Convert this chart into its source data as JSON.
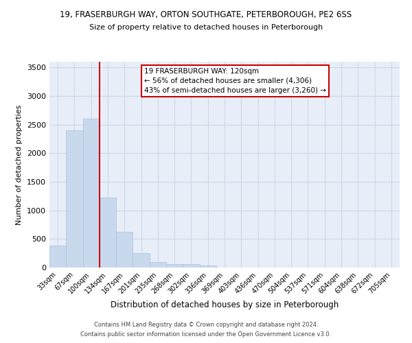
{
  "title_line1": "19, FRASERBURGH WAY, ORTON SOUTHGATE, PETERBOROUGH, PE2 6SS",
  "title_line2": "Size of property relative to detached houses in Peterborough",
  "xlabel": "Distribution of detached houses by size in Peterborough",
  "ylabel": "Number of detached properties",
  "footer_line1": "Contains HM Land Registry data © Crown copyright and database right 2024.",
  "footer_line2": "Contains public sector information licensed under the Open Government Licence v3.0.",
  "annotation_line1": "19 FRASERBURGH WAY: 120sqm",
  "annotation_line2": "← 56% of detached houses are smaller (4,306)",
  "annotation_line3": "43% of semi-detached houses are larger (3,260) →",
  "bar_color": "#c8d9ee",
  "bar_edge_color": "#a8c0de",
  "grid_color": "#cdd6e8",
  "background_color": "#e8eef8",
  "marker_line_color": "#cc0000",
  "categories": [
    "33sqm",
    "67sqm",
    "100sqm",
    "134sqm",
    "167sqm",
    "201sqm",
    "235sqm",
    "268sqm",
    "302sqm",
    "336sqm",
    "369sqm",
    "403sqm",
    "436sqm",
    "470sqm",
    "504sqm",
    "537sqm",
    "571sqm",
    "604sqm",
    "638sqm",
    "672sqm",
    "705sqm"
  ],
  "values": [
    390,
    2400,
    2610,
    1230,
    630,
    255,
    100,
    65,
    55,
    40,
    0,
    0,
    0,
    0,
    0,
    0,
    0,
    0,
    0,
    0,
    0
  ],
  "ylim": [
    0,
    3600
  ],
  "yticks": [
    0,
    500,
    1000,
    1500,
    2000,
    2500,
    3000,
    3500
  ],
  "annotation_box_facecolor": "#ffffff",
  "annotation_box_edgecolor": "#cc0000",
  "footer_color": "#444444"
}
